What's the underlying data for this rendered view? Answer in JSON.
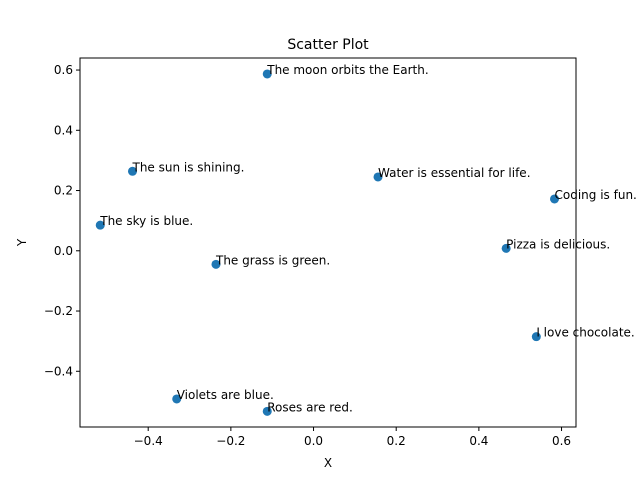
{
  "chart_data": {
    "type": "scatter",
    "title": "Scatter Plot",
    "xlabel": "X",
    "ylabel": "Y",
    "xlim": [
      -0.565,
      0.635
    ],
    "ylim": [
      -0.585,
      0.64
    ],
    "xticks": [
      -0.4,
      -0.2,
      0.0,
      0.2,
      0.4,
      0.6
    ],
    "xtick_labels": [
      "−0.4",
      "−0.2",
      "0.0",
      "0.2",
      "0.4",
      "0.6"
    ],
    "yticks": [
      -0.4,
      -0.2,
      0.0,
      0.2,
      0.4,
      0.6
    ],
    "ytick_labels": [
      "−0.4",
      "−0.2",
      "0.0",
      "0.2",
      "0.4",
      "0.6"
    ],
    "grid": false,
    "marker_color": "#1f77b4",
    "points": [
      {
        "x": -0.112,
        "y": 0.587,
        "label": "The moon orbits the Earth."
      },
      {
        "x": -0.438,
        "y": 0.264,
        "label": "The sun is shining."
      },
      {
        "x": 0.156,
        "y": 0.245,
        "label": "Water is essential for life."
      },
      {
        "x": 0.583,
        "y": 0.172,
        "label": "Coding is fun."
      },
      {
        "x": -0.516,
        "y": 0.085,
        "label": "The sky is blue."
      },
      {
        "x": 0.466,
        "y": 0.008,
        "label": "Pizza is delicious."
      },
      {
        "x": -0.236,
        "y": -0.045,
        "label": "The grass is green."
      },
      {
        "x": 0.539,
        "y": -0.285,
        "label": "I love chocolate."
      },
      {
        "x": -0.331,
        "y": -0.492,
        "label": "Violets are blue."
      },
      {
        "x": -0.112,
        "y": -0.533,
        "label": "Roses are red."
      }
    ]
  }
}
